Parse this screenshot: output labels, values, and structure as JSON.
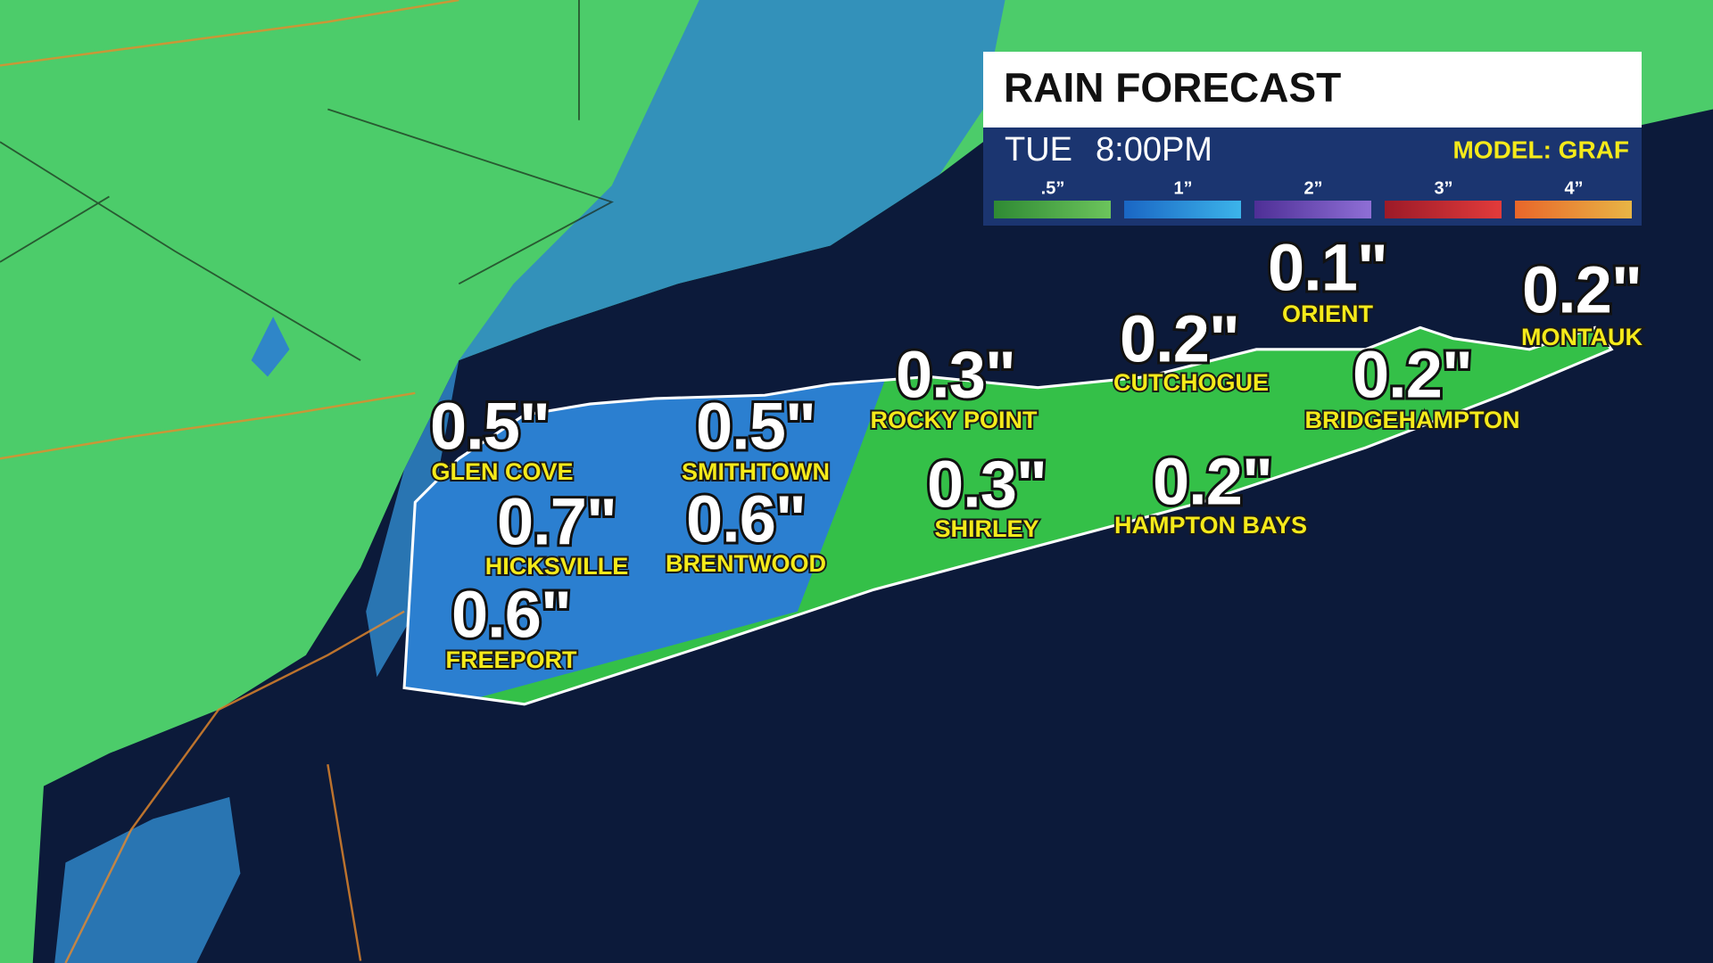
{
  "header": {
    "title": "RAIN FORECAST",
    "day": "TUE",
    "time": "8:00PM",
    "model": "MODEL: GRAF"
  },
  "legend": [
    ".5”",
    "1”",
    "2”",
    "3”",
    "4”"
  ],
  "locations": [
    {
      "name": "GLEN COVE",
      "amount": "0.5\""
    },
    {
      "name": "SMITHTOWN",
      "amount": "0.5\""
    },
    {
      "name": "HICKSVILLE",
      "amount": "0.7\""
    },
    {
      "name": "BRENTWOOD",
      "amount": "0.6\""
    },
    {
      "name": "FREEPORT",
      "amount": "0.6\""
    },
    {
      "name": "ROCKY POINT",
      "amount": "0.3\""
    },
    {
      "name": "SHIRLEY",
      "amount": "0.3\""
    },
    {
      "name": "CUTCHOGUE",
      "amount": "0.2\""
    },
    {
      "name": "ORIENT",
      "amount": "0.1\""
    },
    {
      "name": "BRIDGEHAMPTON",
      "amount": "0.2\""
    },
    {
      "name": "HAMPTON BAYS",
      "amount": "0.2\""
    },
    {
      "name": "MONTAUK",
      "amount": "0.2\""
    }
  ]
}
